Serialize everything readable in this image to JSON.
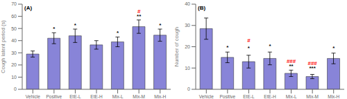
{
  "chart_data": [
    {
      "type": "bar",
      "title": "(A)",
      "categories": [
        "Vehicle",
        "Positive",
        "EtE-L",
        "EtE-H",
        "Mix-L",
        "Mix-M",
        "Mix-H"
      ],
      "values": [
        29.0,
        42.0,
        44.0,
        36.5,
        39.0,
        51.5,
        44.5
      ],
      "errors": [
        2.5,
        4.5,
        5.5,
        3.5,
        4.0,
        5.5,
        5.0
      ],
      "color": "#8884d8",
      "ylim": [
        0,
        70
      ],
      "yticks": [
        0,
        10,
        20,
        30,
        40,
        50,
        60,
        70
      ],
      "ylabel": "Cough latent period (s)",
      "annotations": [
        {
          "text": "*",
          "category": "Positive",
          "y": 48.5,
          "color": "black"
        },
        {
          "text": "*",
          "category": "EtE-L",
          "y": 51.5,
          "color": "black"
        },
        {
          "text": "*",
          "category": "Mix-L",
          "y": 45.0,
          "color": "black"
        },
        {
          "text": "#",
          "category": "Mix-M",
          "y": 61.0,
          "color": "red"
        },
        {
          "text": "**",
          "category": "Mix-M",
          "y": 58.5,
          "color": "black"
        },
        {
          "text": "*",
          "category": "Mix-H",
          "y": 51.5,
          "color": "black"
        }
      ]
    },
    {
      "type": "bar",
      "title": "(B)",
      "categories": [
        "Vehicle",
        "Positive",
        "EtE-L",
        "EtE-H",
        "Mix-L",
        "Mix-M",
        "Mix-H"
      ],
      "values": [
        28.5,
        15.0,
        13.0,
        14.5,
        7.5,
        6.0,
        14.5
      ],
      "errors": [
        5.0,
        2.5,
        3.0,
        3.0,
        1.5,
        1.0,
        2.5
      ],
      "color": "#8884d8",
      "ylim": [
        0,
        40
      ],
      "yticks": [
        0,
        10,
        20,
        30,
        40
      ],
      "ylabel": "Number of cough",
      "annotations": [
        {
          "text": "*",
          "category": "Positive",
          "y": 19.0,
          "color": "black"
        },
        {
          "text": "#",
          "category": "EtE-L",
          "y": 22.0,
          "color": "red"
        },
        {
          "text": "*",
          "category": "EtE-L",
          "y": 18.5,
          "color": "black"
        },
        {
          "text": "*",
          "category": "EtE-H",
          "y": 19.5,
          "color": "black"
        },
        {
          "text": "###",
          "category": "Mix-L",
          "y": 12.5,
          "color": "red"
        },
        {
          "text": "**",
          "category": "Mix-L",
          "y": 10.0,
          "color": "black"
        },
        {
          "text": "###",
          "category": "Mix-M",
          "y": 11.5,
          "color": "red"
        },
        {
          "text": "***",
          "category": "Mix-M",
          "y": 9.0,
          "color": "black"
        },
        {
          "text": "*",
          "category": "Mix-H",
          "y": 18.5,
          "color": "black"
        }
      ]
    }
  ]
}
